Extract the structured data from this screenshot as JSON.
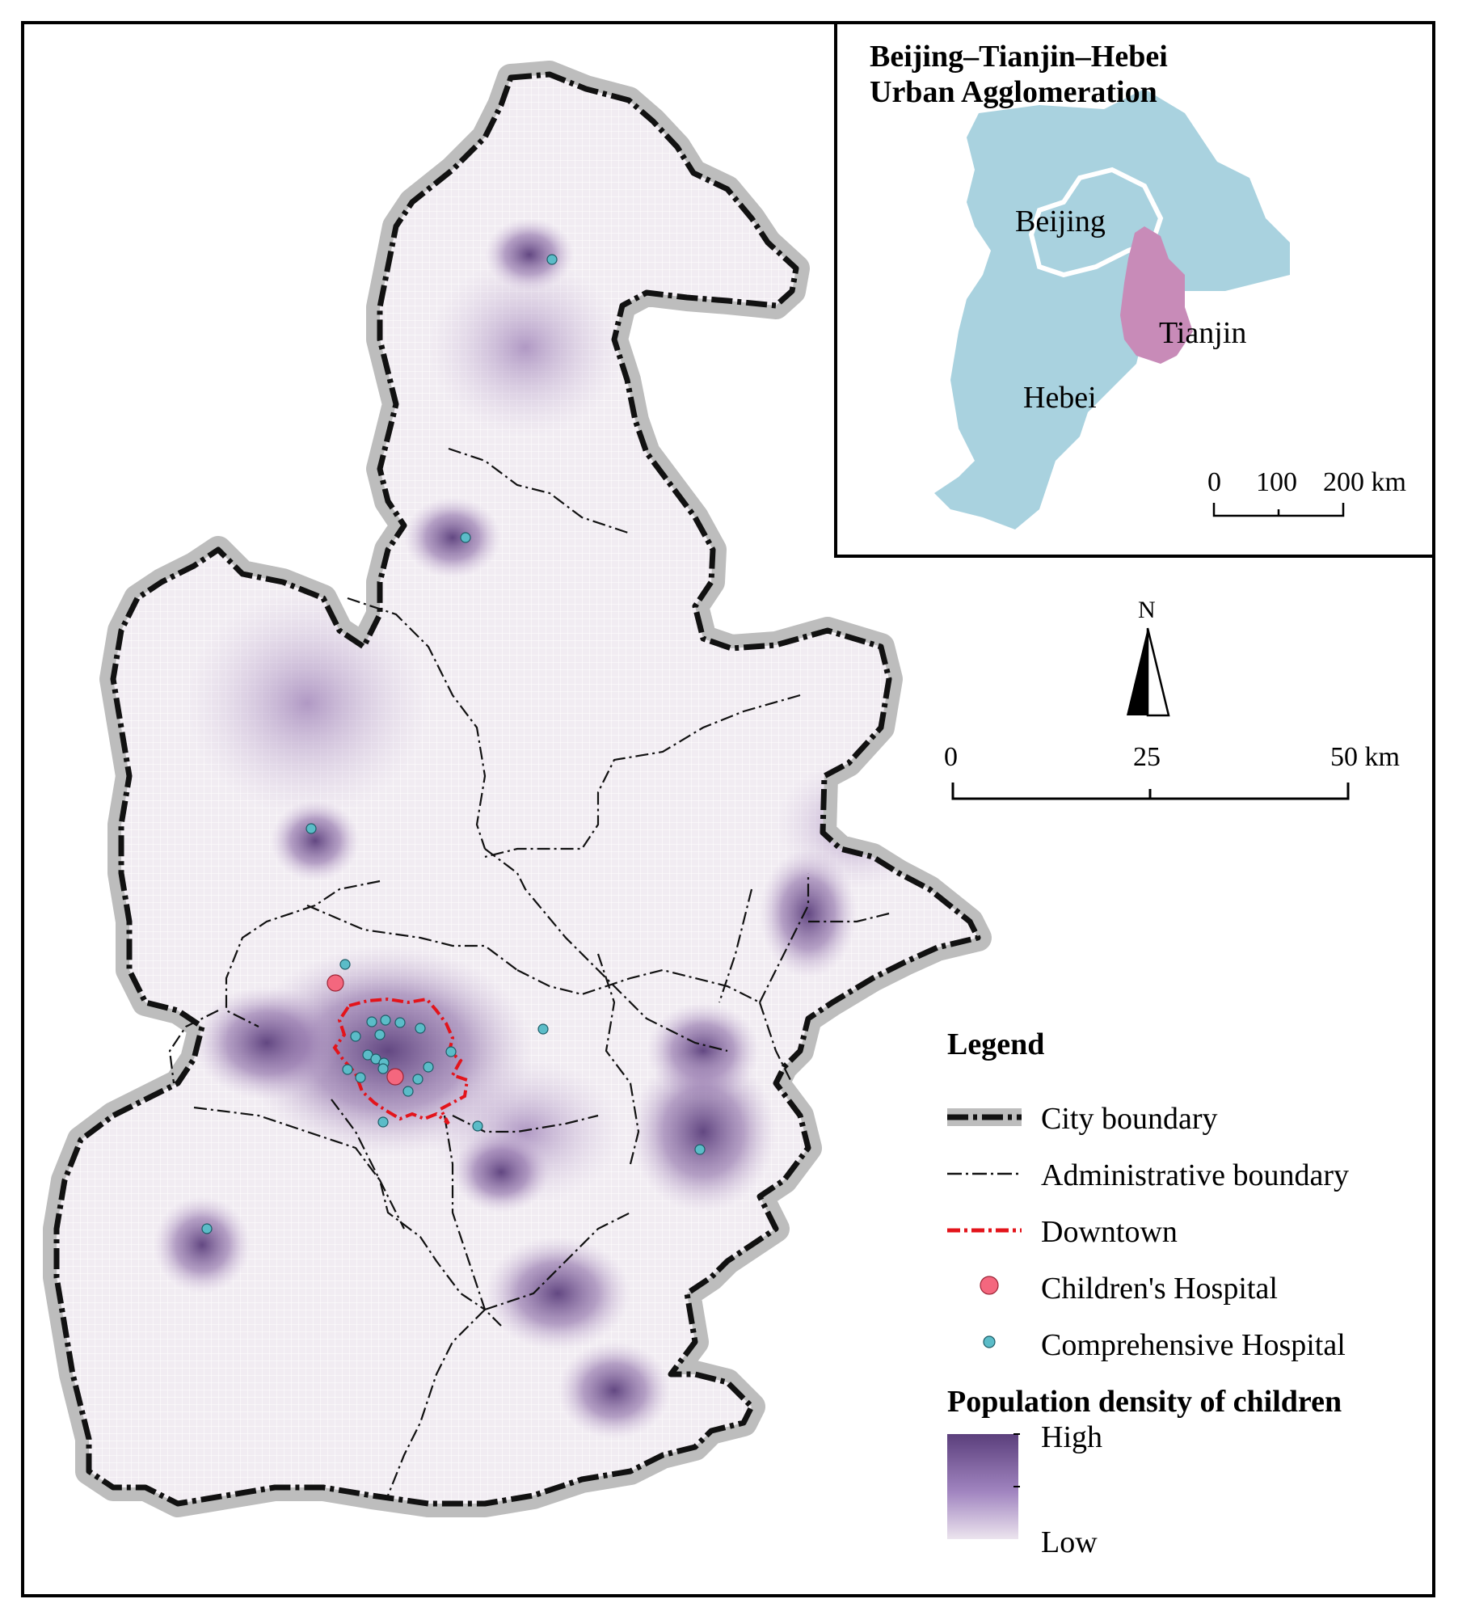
{
  "inset": {
    "title_line1": "Beijing–Tianjin–Hebei",
    "title_line2": "Urban Agglomeration",
    "labels": {
      "beijing": "Beijing",
      "tianjin": "Tianjin",
      "hebei": "Hebei"
    },
    "scale": {
      "t0": "0",
      "t1": "100",
      "t2": "200 km"
    },
    "colors": {
      "region": "#a9d2df",
      "tianjin": "#c88bb8",
      "beijing_outline": "#ffffff"
    }
  },
  "north_arrow": {
    "label": "N"
  },
  "scale_bar": {
    "t0": "0",
    "t1": "25",
    "t2": "50 km"
  },
  "legend": {
    "title": "Legend",
    "items": [
      {
        "label": "City boundary",
        "icon": "city-boundary-line"
      },
      {
        "label": "Administrative boundary",
        "icon": "admin-boundary-line"
      },
      {
        "label": "Downtown",
        "icon": "downtown-line"
      },
      {
        "label": "Children's Hospital",
        "icon": "children-hospital-dot"
      },
      {
        "label": "Comprehensive Hospital",
        "icon": "comprehensive-hospital-dot"
      }
    ],
    "density_title": "Population density of children",
    "density_high": "High",
    "density_low": "Low",
    "colors": {
      "high": "#5b3f7c",
      "low": "#ece4ee",
      "downtown": "#e3141b",
      "children_hospital": "#f4677e",
      "comprehensive_hospital": "#5bbcc8"
    }
  }
}
